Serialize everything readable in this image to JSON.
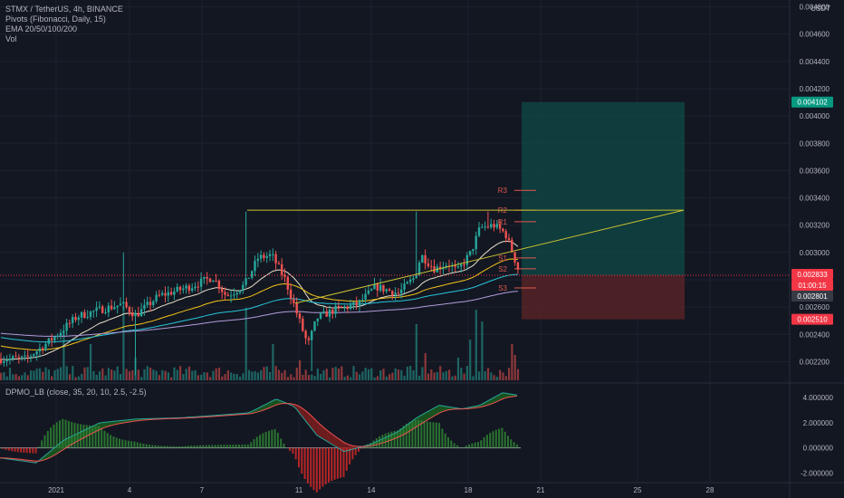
{
  "legend": {
    "symbol": "STMX / TetherUS, 4h, BINANCE",
    "pivots": "Pivots (Fibonacci, Daily, 15)",
    "ema": "EMA 20/50/100/200",
    "vol": "Vol"
  },
  "oscillator_title": "DPMO_LB (close, 35, 20, 10, 2.5, -2.5)",
  "currency": "USDT",
  "colors": {
    "background": "#131722",
    "up": "#26a69a",
    "down": "#ef5350",
    "triangle": "#c8c031",
    "pivot": "#e0584f",
    "target_zone": "#0f4a47",
    "stop_zone": "#5a2428"
  },
  "chart_data": [
    {
      "type": "candlestick",
      "y_axis_ticks": [
        "0.002200",
        "0.002400",
        "0.002600",
        "0.002800",
        "0.003000",
        "0.003200",
        "0.003400",
        "0.003600",
        "0.003800",
        "0.004000",
        "0.004200",
        "0.004400",
        "0.004600",
        "0.004800"
      ],
      "x_axis_ticks": [
        "2021",
        "4",
        "7",
        "11",
        "14",
        "18",
        "21",
        "25",
        "28"
      ],
      "price_labels": [
        {
          "value": "0.004102",
          "kind": "target",
          "color": "#089981"
        },
        {
          "value": "0.002833",
          "kind": "last",
          "color": "#f23645"
        },
        {
          "value": "01:00:15",
          "kind": "countdown",
          "color": "#f23645"
        },
        {
          "value": "0.002801",
          "kind": "ema",
          "color": "#363a45"
        },
        {
          "value": "0.002510",
          "kind": "stop",
          "color": "#f23645"
        }
      ],
      "pivots": [
        {
          "label": "R3",
          "value": 0.003455
        },
        {
          "label": "R2",
          "value": 0.00331
        },
        {
          "label": "R1",
          "value": 0.003225
        },
        {
          "label": "S1",
          "value": 0.00296
        },
        {
          "label": "S2",
          "value": 0.00288
        },
        {
          "label": "S3",
          "value": 0.00274
        }
      ],
      "levels": {
        "entry": 0.002833,
        "target": 0.004102,
        "stop": 0.00251,
        "triangle_top": 0.00331
      },
      "ylim": [
        0.00205,
        0.00485
      ]
    },
    {
      "type": "bar",
      "name": "Vol",
      "description": "volume histogram"
    },
    {
      "type": "line",
      "y_axis_ticks": [
        "4.000000",
        "2.000000",
        "0.000000",
        "-2.000000"
      ],
      "ylim": [
        -2.7,
        5.1
      ]
    }
  ]
}
